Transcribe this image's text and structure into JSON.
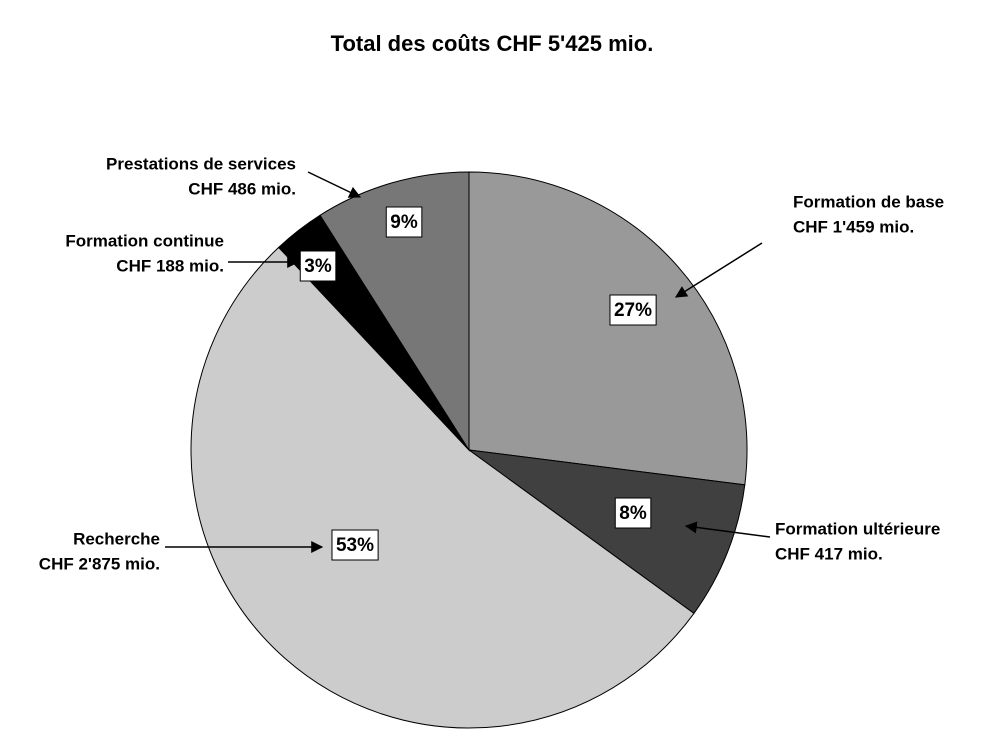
{
  "chart_data": {
    "type": "pie",
    "title": "Total des coûts CHF 5'425 mio.",
    "categories": [
      "Formation de base",
      "Formation ultérieure",
      "Recherche",
      "Formation continue",
      "Prestations de services"
    ],
    "amount_labels": [
      "CHF 1'459 mio.",
      "CHF 417 mio.",
      "CHF 2'875 mio.",
      "CHF 188 mio.",
      "CHF 486 mio."
    ],
    "values": [
      27,
      8,
      53,
      3,
      9
    ],
    "value_labels": [
      "27%",
      "8%",
      "53%",
      "3%",
      "9%"
    ],
    "colors": [
      "#999999",
      "#404040",
      "#cccccc",
      "#000000",
      "#777777"
    ]
  }
}
